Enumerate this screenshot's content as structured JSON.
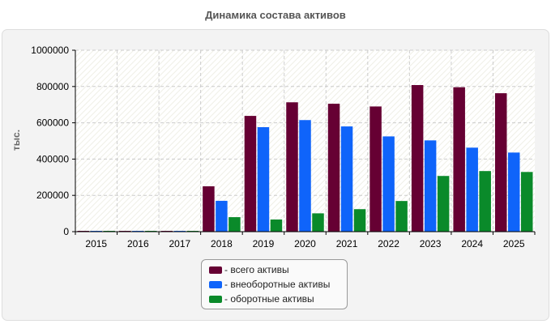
{
  "chart_data": {
    "type": "bar",
    "title": "Динамика состава активов",
    "ylabel": "тыс.",
    "xlabel": "",
    "categories": [
      "2015",
      "2016",
      "2017",
      "2018",
      "2019",
      "2020",
      "2021",
      "2022",
      "2023",
      "2024",
      "2025"
    ],
    "ylim": [
      0,
      1000000
    ],
    "yticks": [
      0,
      200000,
      400000,
      600000,
      800000,
      1000000
    ],
    "ytick_labels": [
      "0",
      "200000",
      "400000",
      "600000",
      "800000",
      "1000000"
    ],
    "grid": true,
    "legend_position": "bottom-center",
    "series": [
      {
        "name": "- всего активы",
        "color": "#660033",
        "values": [
          2000,
          2000,
          2000,
          250000,
          638000,
          713000,
          705000,
          690000,
          808000,
          796000,
          763000
        ]
      },
      {
        "name": "- внеоборотные активы",
        "color": "#0f64fa",
        "values": [
          1500,
          1500,
          1500,
          170000,
          576000,
          615000,
          580000,
          525000,
          503000,
          463000,
          436000
        ]
      },
      {
        "name": "- оборотные активы",
        "color": "#0a8a2a",
        "values": [
          500,
          500,
          500,
          80000,
          67000,
          101000,
          124000,
          169000,
          307000,
          334000,
          329000
        ]
      }
    ]
  }
}
